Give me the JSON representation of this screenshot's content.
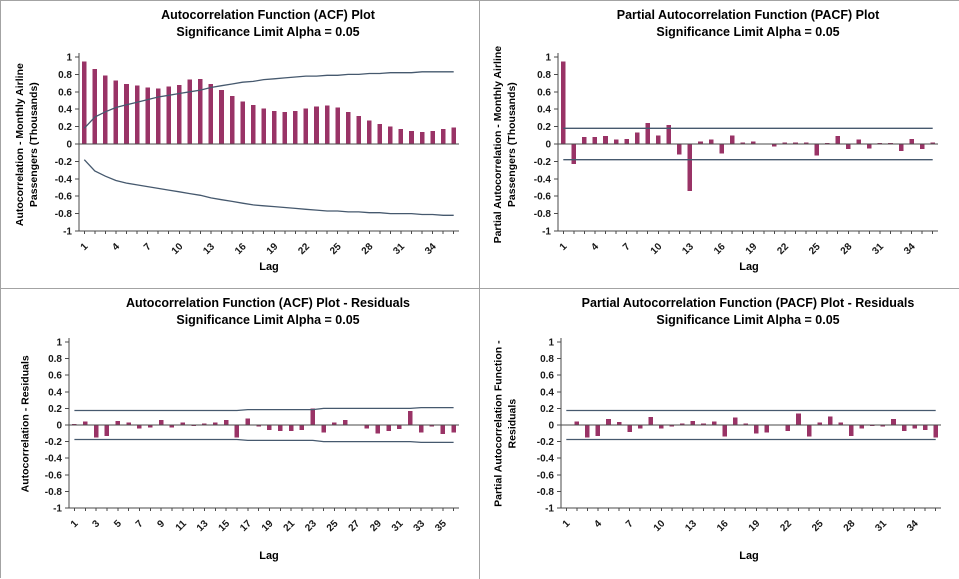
{
  "window": {
    "background": "#FFFFFF",
    "grid_border_color": "#A3A3A3"
  },
  "colors": {
    "bar": "#993366",
    "limit_line": "#46596E",
    "axis": "#4A4A4A",
    "text": "#000000"
  },
  "chart_data": [
    {
      "id": "acf-airline",
      "type": "bar",
      "grid": "off",
      "legend": "none",
      "title": "Autocorrelation Function (ACF) Plot",
      "subtitle": "Significance Limit Alpha = 0.05",
      "ylabel": "Autocorrelation - Monthly Airline Passengers (Thousands)",
      "ylabel_lines": [
        "Autocorrelation - Monthly Airline",
        "Passengers (Thousands)"
      ],
      "xlabel": "Lag",
      "ylim": [
        -1,
        1
      ],
      "yticks": [
        1,
        0.8,
        0.6,
        0.4,
        0.2,
        0,
        -0.2,
        -0.4,
        -0.6,
        -0.8,
        -1
      ],
      "x": [
        1,
        2,
        3,
        4,
        5,
        6,
        7,
        8,
        9,
        10,
        11,
        12,
        13,
        14,
        15,
        16,
        17,
        18,
        19,
        20,
        21,
        22,
        23,
        24,
        25,
        26,
        27,
        28,
        29,
        30,
        31,
        32,
        33,
        34,
        35,
        36
      ],
      "xticks": [
        1,
        4,
        7,
        10,
        13,
        16,
        19,
        22,
        25,
        28,
        31,
        34
      ],
      "values": [
        0.95,
        0.86,
        0.79,
        0.73,
        0.69,
        0.67,
        0.65,
        0.64,
        0.66,
        0.68,
        0.74,
        0.75,
        0.69,
        0.62,
        0.55,
        0.49,
        0.45,
        0.41,
        0.38,
        0.37,
        0.38,
        0.41,
        0.43,
        0.44,
        0.42,
        0.37,
        0.32,
        0.27,
        0.23,
        0.2,
        0.17,
        0.15,
        0.14,
        0.15,
        0.17,
        0.19
      ],
      "upper_limit": [
        0.18,
        0.31,
        0.37,
        0.42,
        0.45,
        0.48,
        0.51,
        0.54,
        0.56,
        0.58,
        0.6,
        0.62,
        0.65,
        0.67,
        0.69,
        0.71,
        0.72,
        0.74,
        0.75,
        0.76,
        0.77,
        0.78,
        0.78,
        0.79,
        0.79,
        0.8,
        0.8,
        0.81,
        0.81,
        0.82,
        0.82,
        0.82,
        0.83,
        0.83,
        0.83,
        0.83
      ],
      "lower_limit": [
        -0.18,
        -0.31,
        -0.37,
        -0.42,
        -0.45,
        -0.47,
        -0.49,
        -0.51,
        -0.53,
        -0.55,
        -0.57,
        -0.59,
        -0.62,
        -0.64,
        -0.66,
        -0.68,
        -0.7,
        -0.71,
        -0.72,
        -0.73,
        -0.74,
        -0.75,
        -0.76,
        -0.77,
        -0.77,
        -0.78,
        -0.78,
        -0.79,
        -0.79,
        -0.8,
        -0.8,
        -0.8,
        -0.81,
        -0.81,
        -0.82,
        -0.82
      ]
    },
    {
      "id": "pacf-airline",
      "type": "bar",
      "grid": "off",
      "legend": "none",
      "title": "Partial Autocorrelation Function (PACF) Plot",
      "subtitle": "Significance Limit Alpha = 0.05",
      "ylabel": "Partial Autocorrelation - Monthly Airline Passengers (Thousands)",
      "ylabel_lines": [
        "Partial Autocorrelation - Monthly Airline",
        "Passengers (Thousands)"
      ],
      "xlabel": "Lag",
      "ylim": [
        -1,
        1
      ],
      "yticks": [
        1,
        0.8,
        0.6,
        0.4,
        0.2,
        0,
        -0.2,
        -0.4,
        -0.6,
        -0.8,
        -1
      ],
      "x": [
        1,
        2,
        3,
        4,
        5,
        6,
        7,
        8,
        9,
        10,
        11,
        12,
        13,
        14,
        15,
        16,
        17,
        18,
        19,
        20,
        21,
        22,
        23,
        24,
        25,
        26,
        27,
        28,
        29,
        30,
        31,
        32,
        33,
        34,
        35,
        36
      ],
      "xticks": [
        1,
        4,
        7,
        10,
        13,
        16,
        19,
        22,
        25,
        28,
        31,
        34
      ],
      "values": [
        0.95,
        -0.23,
        0.08,
        0.08,
        0.09,
        0.05,
        0.06,
        0.13,
        0.24,
        0.1,
        0.22,
        -0.12,
        -0.54,
        0.03,
        0.05,
        -0.11,
        0.1,
        0.02,
        0.03,
        0.0,
        -0.03,
        0.02,
        0.02,
        0.02,
        -0.13,
        0.01,
        0.09,
        -0.06,
        0.05,
        -0.05,
        0.01,
        0.01,
        -0.08,
        0.06,
        -0.06,
        0.02
      ],
      "upper_limit": 0.18,
      "lower_limit": -0.18
    },
    {
      "id": "acf-residuals",
      "type": "bar",
      "grid": "off",
      "legend": "none",
      "title": "Autocorrelation Function (ACF) Plot - Residuals",
      "subtitle": "Significance Limit Alpha = 0.05",
      "ylabel": "Autocorrelation - Residuals",
      "ylabel_lines": [
        "Autocorrelation - Residuals"
      ],
      "xlabel": "Lag",
      "ylim": [
        -1,
        1
      ],
      "yticks": [
        1,
        0.8,
        0.6,
        0.4,
        0.2,
        0,
        -0.2,
        -0.4,
        -0.6,
        -0.8,
        -1
      ],
      "x": [
        1,
        2,
        3,
        4,
        5,
        6,
        7,
        8,
        9,
        10,
        11,
        12,
        13,
        14,
        15,
        16,
        17,
        18,
        19,
        20,
        21,
        22,
        23,
        24,
        25,
        26,
        27,
        28,
        29,
        30,
        31,
        32,
        33,
        34,
        35,
        36
      ],
      "xticks": [
        1,
        3,
        5,
        7,
        9,
        11,
        13,
        15,
        17,
        19,
        21,
        23,
        25,
        27,
        29,
        31,
        33,
        35
      ],
      "values": [
        0.01,
        0.04,
        -0.15,
        -0.13,
        0.05,
        0.03,
        -0.04,
        -0.03,
        0.06,
        -0.03,
        0.03,
        -0.01,
        0.02,
        0.03,
        0.06,
        -0.15,
        0.08,
        -0.02,
        -0.06,
        -0.07,
        -0.07,
        -0.06,
        0.2,
        -0.09,
        0.03,
        0.06,
        0.0,
        -0.04,
        -0.1,
        -0.07,
        -0.05,
        0.17,
        -0.09,
        -0.02,
        -0.11,
        -0.09
      ],
      "upper_limit": [
        0.175,
        0.175,
        0.175,
        0.175,
        0.175,
        0.175,
        0.175,
        0.175,
        0.175,
        0.175,
        0.175,
        0.175,
        0.175,
        0.175,
        0.175,
        0.175,
        0.185,
        0.185,
        0.185,
        0.185,
        0.185,
        0.185,
        0.185,
        0.2,
        0.2,
        0.2,
        0.2,
        0.2,
        0.2,
        0.2,
        0.2,
        0.2,
        0.21,
        0.21,
        0.21,
        0.21
      ],
      "lower_limit": [
        -0.175,
        -0.175,
        -0.175,
        -0.175,
        -0.175,
        -0.175,
        -0.175,
        -0.175,
        -0.175,
        -0.175,
        -0.175,
        -0.175,
        -0.175,
        -0.175,
        -0.175,
        -0.175,
        -0.185,
        -0.185,
        -0.185,
        -0.185,
        -0.185,
        -0.185,
        -0.185,
        -0.2,
        -0.2,
        -0.2,
        -0.2,
        -0.2,
        -0.2,
        -0.2,
        -0.2,
        -0.2,
        -0.21,
        -0.21,
        -0.21,
        -0.21
      ]
    },
    {
      "id": "pacf-residuals",
      "type": "bar",
      "grid": "off",
      "legend": "none",
      "title": "Partial Autocorrelation Function (PACF) Plot - Residuals",
      "subtitle": "Significance Limit Alpha = 0.05",
      "ylabel": "Partial Autocorrelation Function - Residuals",
      "ylabel_lines": [
        "Partial Autocorrelation Function -",
        "Residuals"
      ],
      "xlabel": "Lag",
      "ylim": [
        -1,
        1
      ],
      "yticks": [
        1,
        0.8,
        0.6,
        0.4,
        0.2,
        0,
        -0.2,
        -0.4,
        -0.6,
        -0.8,
        -1
      ],
      "x": [
        1,
        2,
        3,
        4,
        5,
        6,
        7,
        8,
        9,
        10,
        11,
        12,
        13,
        14,
        15,
        16,
        17,
        18,
        19,
        20,
        21,
        22,
        23,
        24,
        25,
        26,
        27,
        28,
        29,
        30,
        31,
        32,
        33,
        34,
        35,
        36
      ],
      "xticks": [
        1,
        4,
        7,
        10,
        13,
        16,
        19,
        22,
        25,
        28,
        31,
        34
      ],
      "values": [
        0.0,
        0.045,
        -0.15,
        -0.13,
        0.07,
        0.035,
        -0.085,
        -0.045,
        0.095,
        -0.04,
        -0.02,
        0.02,
        0.05,
        0.02,
        0.045,
        -0.14,
        0.09,
        0.02,
        -0.1,
        -0.09,
        0.0,
        -0.07,
        0.14,
        -0.14,
        0.03,
        0.1,
        0.03,
        -0.13,
        -0.04,
        -0.01,
        -0.02,
        0.07,
        -0.07,
        -0.04,
        -0.06,
        -0.15
      ],
      "upper_limit": 0.175,
      "lower_limit": -0.175
    }
  ]
}
